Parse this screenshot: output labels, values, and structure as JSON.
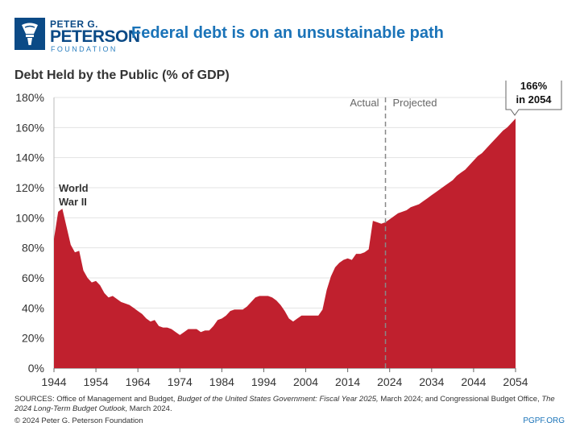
{
  "logo": {
    "line1": "PETER G.",
    "line2": "PETERSON",
    "line3": "FOUNDATION",
    "icon": "torch-icon"
  },
  "headline": "Federal debt is on an unsustainable path",
  "colors": {
    "brand": "#0b4a86",
    "headline": "#1a73b8",
    "area": "#c0202e"
  },
  "chart_data": {
    "type": "area",
    "title": "Debt Held by the Public (% of GDP)",
    "xlabel": "",
    "ylabel": "",
    "xlim": [
      1944,
      2054
    ],
    "ylim": [
      0,
      180
    ],
    "yticks": [
      "0%",
      "20%",
      "40%",
      "60%",
      "80%",
      "100%",
      "120%",
      "140%",
      "160%",
      "180%"
    ],
    "xticks": [
      "1944",
      "1954",
      "1964",
      "1974",
      "1984",
      "1994",
      "2004",
      "2014",
      "2024",
      "2034",
      "2044",
      "2054"
    ],
    "divider_year": 2023,
    "divider_labels": {
      "left": "Actual",
      "right": "Projected"
    },
    "annotations": {
      "ww2": [
        "World",
        "War II"
      ],
      "end_callout": [
        "166%",
        "in 2054"
      ]
    },
    "series": [
      {
        "name": "Debt Held by the Public",
        "x": [
          1944,
          1945,
          1946,
          1947,
          1948,
          1949,
          1950,
          1951,
          1952,
          1953,
          1954,
          1955,
          1956,
          1957,
          1958,
          1959,
          1960,
          1961,
          1962,
          1963,
          1964,
          1965,
          1966,
          1967,
          1968,
          1969,
          1970,
          1971,
          1972,
          1973,
          1974,
          1975,
          1976,
          1977,
          1978,
          1979,
          1980,
          1981,
          1982,
          1983,
          1984,
          1985,
          1986,
          1987,
          1988,
          1989,
          1990,
          1991,
          1992,
          1993,
          1994,
          1995,
          1996,
          1997,
          1998,
          1999,
          2000,
          2001,
          2002,
          2003,
          2004,
          2005,
          2006,
          2007,
          2008,
          2009,
          2010,
          2011,
          2012,
          2013,
          2014,
          2015,
          2016,
          2017,
          2018,
          2019,
          2020,
          2021,
          2022,
          2023,
          2024,
          2025,
          2026,
          2027,
          2028,
          2029,
          2030,
          2031,
          2032,
          2033,
          2034,
          2035,
          2036,
          2037,
          2038,
          2039,
          2040,
          2041,
          2042,
          2043,
          2044,
          2045,
          2046,
          2047,
          2048,
          2049,
          2050,
          2051,
          2052,
          2053,
          2054
        ],
        "values": [
          86,
          104,
          106,
          94,
          82,
          77,
          78,
          65,
          60,
          57,
          58,
          55,
          50,
          47,
          48,
          46,
          44,
          43,
          42,
          40,
          38,
          36,
          33,
          31,
          32,
          28,
          27,
          27,
          26,
          24,
          22,
          24,
          26,
          26,
          26,
          24,
          25,
          25,
          28,
          32,
          33,
          35,
          38,
          39,
          39,
          39,
          41,
          44,
          47,
          48,
          48,
          48,
          47,
          45,
          42,
          38,
          33,
          31,
          33,
          35,
          35,
          35,
          35,
          35,
          39,
          52,
          61,
          67,
          70,
          72,
          73,
          72,
          76,
          76,
          77,
          79,
          98,
          97,
          96,
          97,
          99,
          101,
          103,
          104,
          105,
          107,
          108,
          109,
          111,
          113,
          115,
          117,
          119,
          121,
          123,
          125,
          128,
          130,
          132,
          135,
          138,
          141,
          143,
          146,
          149,
          152,
          155,
          158,
          160,
          163,
          166
        ]
      }
    ]
  },
  "sources": {
    "prefix": "SOURCES: Office of Management and Budget, ",
    "title1": "Budget of the United States Government: Fiscal Year 2025,",
    "middle": " March 2024; and Congressional Budget Office, ",
    "title2": "The 2024 Long-Term Budget Outlook,",
    "suffix": " March 2024."
  },
  "copyright": "© 2024 Peter G. Peterson Foundation",
  "site": "PGPF.ORG"
}
